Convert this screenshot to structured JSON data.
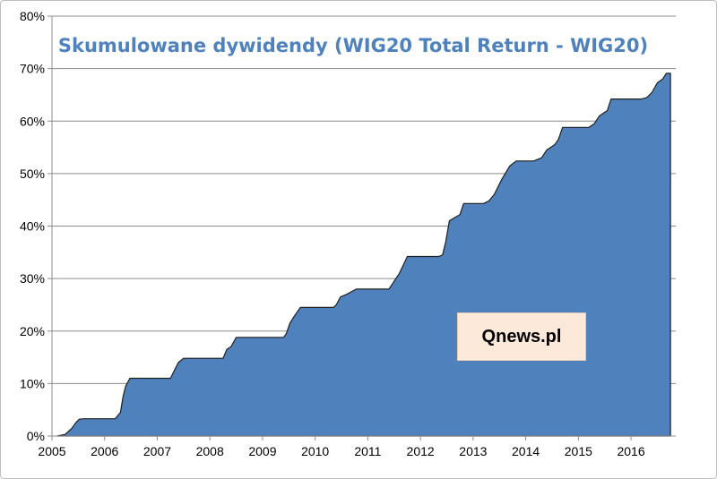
{
  "chart_data": {
    "type": "area",
    "title": "Skumulowane dywidendy (WIG20 Total Return - WIG20)",
    "xlabel": "",
    "ylabel": "",
    "xlim": [
      2005.0,
      2016.85
    ],
    "ylim": [
      0,
      80
    ],
    "y_ticks": [
      "0%",
      "10%",
      "20%",
      "30%",
      "40%",
      "50%",
      "60%",
      "70%",
      "80%"
    ],
    "x_ticks": [
      "2005",
      "2006",
      "2007",
      "2008",
      "2009",
      "2010",
      "2011",
      "2012",
      "2013",
      "2014",
      "2015",
      "2016"
    ],
    "grid": "horizontal",
    "legend": "none",
    "fill_color": "#4f81bd",
    "line_color": "#1f1f1f",
    "title_color": "#4f81bd",
    "series": [
      {
        "x": [
          2005.1,
          2005.25,
          2005.38,
          2005.45,
          2005.52,
          2005.6,
          2006.2,
          2006.3,
          2006.35,
          2006.4,
          2006.48,
          2007.25,
          2007.3,
          2007.4,
          2007.5,
          2008.25,
          2008.32,
          2008.4,
          2008.5,
          2009.4,
          2009.45,
          2009.52,
          2009.6,
          2009.72,
          2010.35,
          2010.4,
          2010.48,
          2010.6,
          2010.78,
          2011.4,
          2011.5,
          2011.6,
          2011.75,
          2012.35,
          2012.42,
          2012.48,
          2012.55,
          2012.75,
          2012.82,
          2013.2,
          2013.3,
          2013.4,
          2013.55,
          2013.7,
          2013.82,
          2014.15,
          2014.3,
          2014.4,
          2014.55,
          2014.62,
          2014.7,
          2015.2,
          2015.3,
          2015.4,
          2015.55,
          2015.62,
          2016.2,
          2016.3,
          2016.4,
          2016.5,
          2016.6,
          2016.67,
          2016.75
        ],
        "y": [
          0,
          0.3,
          1.5,
          2.5,
          3.2,
          3.3,
          3.3,
          4.5,
          7.5,
          9.5,
          11,
          11,
          12,
          14,
          14.8,
          14.8,
          16.5,
          17,
          18.8,
          18.8,
          19.5,
          21.5,
          22.8,
          24.5,
          24.5,
          25,
          26.5,
          27,
          28,
          28,
          29.5,
          31,
          34.2,
          34.2,
          34.5,
          37,
          41,
          42.2,
          44.3,
          44.3,
          44.8,
          46,
          49,
          51.5,
          52.4,
          52.4,
          53,
          54.5,
          55.5,
          56.5,
          58.8,
          58.8,
          59.5,
          61,
          62,
          64.2,
          64.2,
          64.5,
          65.5,
          67.3,
          68,
          69.1,
          69.1
        ]
      }
    ],
    "watermark": "Qnews.pl"
  }
}
